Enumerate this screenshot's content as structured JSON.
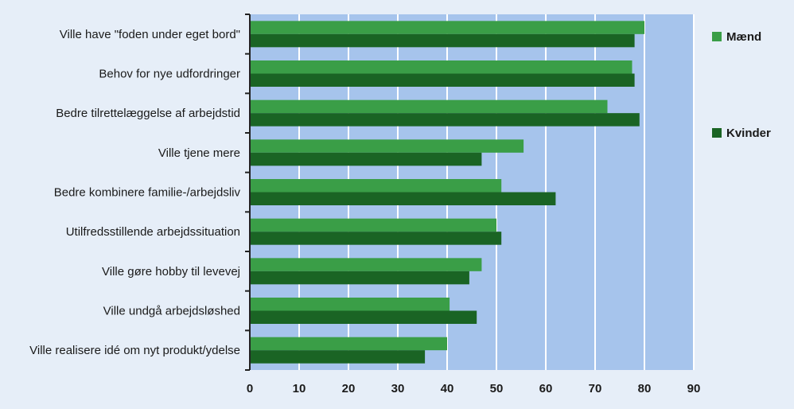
{
  "chart_data": {
    "type": "bar",
    "orientation": "horizontal",
    "categories": [
      "Ville have \"foden under eget bord\"",
      "Behov for nye udfordringer",
      "Bedre tilrettelæggelse af arbejdstid",
      "Ville tjene mere",
      "Bedre kombinere familie-/arbejdsliv",
      "Utilfredsstillende arbejdssituation",
      "Ville gøre hobby til levevej",
      "Ville undgå arbejdsløshed",
      "Ville realisere idé om nyt produkt/ydelse"
    ],
    "series": [
      {
        "name": "Mænd",
        "values": [
          80,
          77.5,
          72.5,
          55.5,
          51,
          50,
          47,
          40.5,
          40
        ]
      },
      {
        "name": "Kvinder",
        "values": [
          78,
          78,
          79,
          47,
          62,
          51,
          44.5,
          46,
          35.5
        ]
      }
    ],
    "xlim": [
      0,
      90
    ],
    "xticks": [
      0,
      10,
      20,
      30,
      40,
      50,
      60,
      70,
      80,
      90
    ],
    "colors": {
      "Mænd": "#3a9e47",
      "Kvinder": "#1a6424",
      "plot_background": "#a6c4ec",
      "gridline": "#ffffff",
      "axis": "#222222"
    },
    "grid": true,
    "legend": "right",
    "title": "",
    "xlabel": "",
    "ylabel": ""
  }
}
